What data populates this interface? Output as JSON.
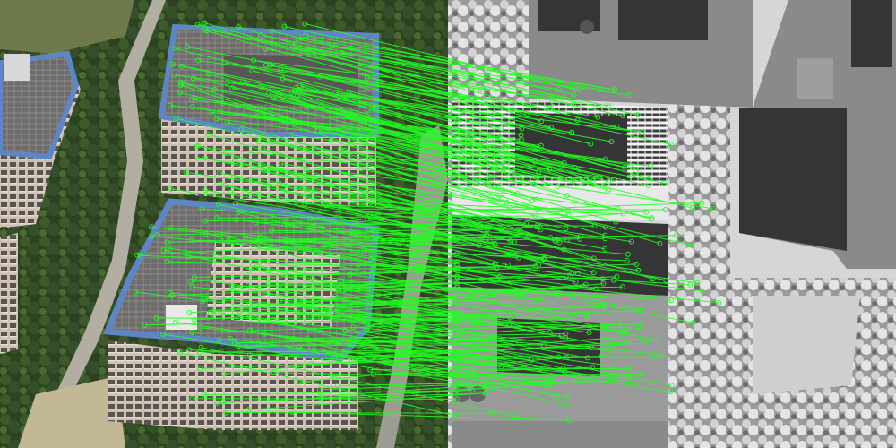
{
  "scene": {
    "left_panel": "textured-photo-render",
    "right_panel": "untextured-gray-mesh-render",
    "overlay": "feature-match-lines"
  },
  "colors": {
    "match_line": "#22ff22",
    "grass": "#3f5a22",
    "tree_dark": "#23361a",
    "facade": "#b8a89a",
    "roof_gray": "#7a7a78",
    "roof_trim_blue": "#5f86c4",
    "road": "#b3aea2",
    "mesh_light": "#d6d6d6",
    "mesh_dark": "#353535",
    "mesh_mid": "#8a8a8a"
  }
}
